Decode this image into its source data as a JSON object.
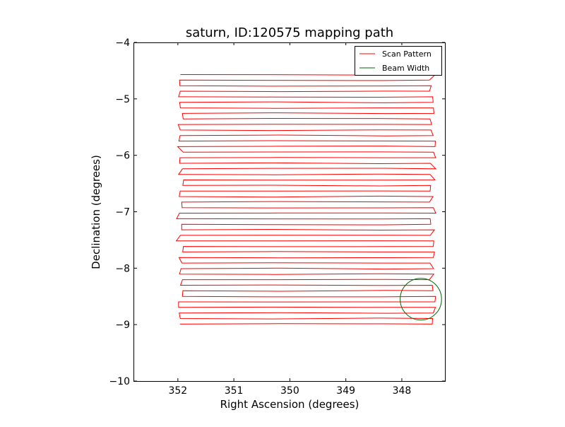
{
  "chart_data": {
    "type": "line",
    "title": "saturn, ID:120575 mapping path",
    "xlabel": "Right Ascension (degrees)",
    "ylabel": "Declination (degrees)",
    "xlim": [
      352.78,
      347.23
    ],
    "ylim": [
      -10,
      -4
    ],
    "xticks": [
      352,
      351,
      350,
      349,
      348
    ],
    "xtick_labels": [
      "352",
      "351",
      "350",
      "349",
      "348"
    ],
    "yticks": [
      -4,
      -5,
      -6,
      -7,
      -8,
      -9,
      -10
    ],
    "ytick_labels": [
      "−4",
      "−5",
      "−6",
      "−7",
      "−8",
      "−9",
      "−10"
    ],
    "grid": false,
    "legend": {
      "placement": "top-right",
      "entries": [
        "Scan Pattern",
        "Beam Width"
      ]
    },
    "series": [
      {
        "name": "Scan Pattern",
        "color": "#ff0000",
        "description_kind": "raster",
        "ra_left": 351.95,
        "ra_right": 347.45,
        "dec_start": -8.99,
        "dec_end": -4.57,
        "rows": 46
      },
      {
        "name": "Beam Width",
        "color": "#006400",
        "center_ra": 347.66,
        "center_dec": -8.55,
        "radius_deg": 0.37
      }
    ]
  }
}
